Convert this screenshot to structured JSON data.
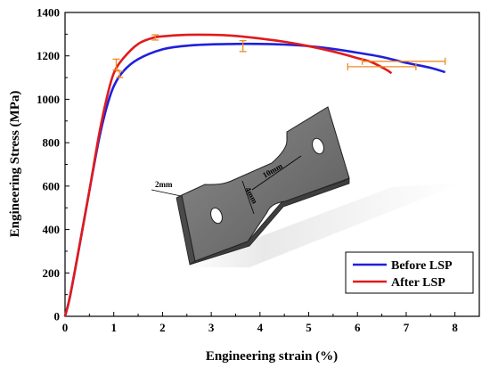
{
  "chart_data": {
    "type": "line",
    "title": "",
    "xlabel": "Engineering strain (%)",
    "ylabel": "Engineering Stress (MPa)",
    "xlim": [
      0,
      8.5
    ],
    "ylim": [
      0,
      1400
    ],
    "xticks": [
      "0",
      "1",
      "2",
      "3",
      "4",
      "5",
      "6",
      "7",
      "8"
    ],
    "yticks": [
      "0",
      "200",
      "400",
      "600",
      "800",
      "1000",
      "1200",
      "1400"
    ],
    "legend": {
      "placement": "bottom-right",
      "boxed": true
    },
    "series": [
      {
        "name": "Before LSP",
        "color": "#1f1fdd",
        "points": [
          [
            0,
            0
          ],
          [
            0.1,
            90
          ],
          [
            0.3,
            330
          ],
          [
            0.5,
            580
          ],
          [
            0.7,
            820
          ],
          [
            0.85,
            960
          ],
          [
            1.0,
            1060
          ],
          [
            1.2,
            1130
          ],
          [
            1.5,
            1185
          ],
          [
            2.0,
            1230
          ],
          [
            2.5,
            1247
          ],
          [
            3.0,
            1253
          ],
          [
            3.5,
            1255
          ],
          [
            4.0,
            1255
          ],
          [
            4.5,
            1252
          ],
          [
            5.0,
            1245
          ],
          [
            5.5,
            1232
          ],
          [
            6.0,
            1215
          ],
          [
            6.5,
            1195
          ],
          [
            7.0,
            1168
          ],
          [
            7.5,
            1145
          ],
          [
            7.8,
            1125
          ]
        ]
      },
      {
        "name": "After LSP",
        "color": "#e01b1b",
        "points": [
          [
            0,
            0
          ],
          [
            0.1,
            90
          ],
          [
            0.3,
            330
          ],
          [
            0.5,
            580
          ],
          [
            0.7,
            840
          ],
          [
            0.85,
            1000
          ],
          [
            1.0,
            1120
          ],
          [
            1.2,
            1190
          ],
          [
            1.5,
            1255
          ],
          [
            1.8,
            1283
          ],
          [
            2.0,
            1290
          ],
          [
            2.5,
            1297
          ],
          [
            3.0,
            1297
          ],
          [
            3.5,
            1292
          ],
          [
            4.0,
            1280
          ],
          [
            4.5,
            1265
          ],
          [
            5.0,
            1245
          ],
          [
            5.5,
            1220
          ],
          [
            6.0,
            1190
          ],
          [
            6.3,
            1170
          ],
          [
            6.6,
            1135
          ],
          [
            6.7,
            1120
          ]
        ]
      }
    ],
    "error_bars": {
      "color": "#f08a20",
      "vertical": [
        {
          "x": 1.05,
          "y": 1160,
          "err": 25
        },
        {
          "x": 1.12,
          "y": 1115,
          "err": 15
        },
        {
          "x": 1.85,
          "y": 1285,
          "err": 12
        },
        {
          "x": 3.65,
          "y": 1245,
          "err": 25
        }
      ],
      "horizontal": [
        {
          "x": 6.5,
          "y": 1150,
          "err": 0.7
        },
        {
          "x": 6.95,
          "y": 1175,
          "err": 0.85
        }
      ]
    }
  },
  "specimen": {
    "dimension_labels": [
      "2mm",
      "10mm",
      "4mm"
    ]
  }
}
